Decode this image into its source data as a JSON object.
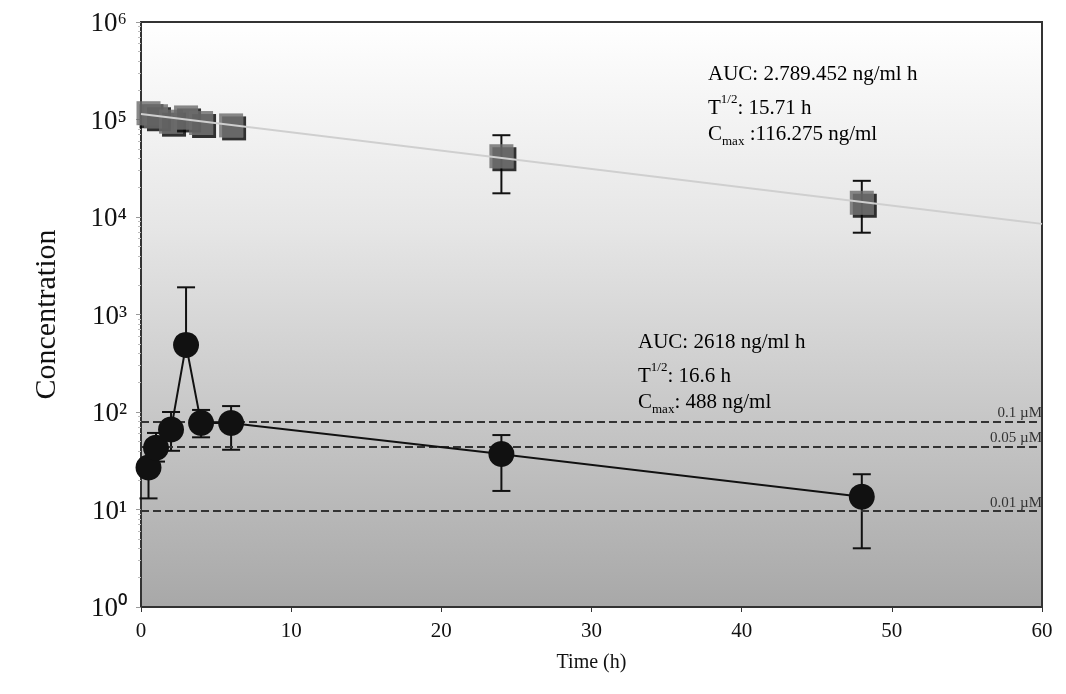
{
  "chart_data": {
    "type": "line",
    "xlabel": "Time (h)",
    "ylabel": "Concentration",
    "xlim": [
      0,
      60
    ],
    "xticks": [
      0,
      10,
      20,
      30,
      40,
      50,
      60
    ],
    "log": "y",
    "ylim": [
      1,
      1000000
    ],
    "yticks": [
      {
        "value": 1,
        "label": "10⁰"
      },
      {
        "value": 10,
        "label": "10¹"
      },
      {
        "value": 100,
        "label": "10²"
      },
      {
        "value": 1000,
        "label": "10³"
      },
      {
        "value": 10000,
        "label": "10⁴"
      },
      {
        "value": 100000,
        "label": "10⁵"
      },
      {
        "value": 1000000,
        "label": "10⁶"
      }
    ],
    "grid": false,
    "series": [
      {
        "type": "scatter",
        "color": "#6b6b6b",
        "marker": "square",
        "x": [
          0.5,
          1,
          2,
          3,
          4,
          6,
          24,
          48
        ],
        "values": [
          116000,
          108000,
          95000,
          105000,
          92000,
          87000,
          42000,
          14000
        ],
        "errors": [
          null,
          null,
          null,
          null,
          null,
          null,
          [
            17500,
            69000
          ],
          [
            6900,
            23500
          ]
        ]
      },
      {
        "type": "line",
        "color": "#cfcfcf",
        "marker": "none",
        "line_style": "solid",
        "x": [
          0,
          60
        ],
        "values": [
          114000,
          8500
        ]
      },
      {
        "type": "line",
        "color": "#111111",
        "marker": "circle",
        "line_style": "solid",
        "x": [
          0.5,
          1,
          2,
          3,
          4,
          6,
          24,
          48
        ],
        "values": [
          27,
          43,
          66,
          488,
          77,
          77,
          37,
          13.5
        ],
        "errors": [
          [
            13,
            27
          ],
          [
            31,
            61
          ],
          [
            40,
            100
          ],
          [
            488,
            1900
          ],
          [
            55,
            105
          ],
          [
            41,
            115
          ],
          [
            15.5,
            58
          ],
          [
            4,
            23
          ]
        ]
      }
    ],
    "ref_lines": [
      {
        "axis": "y",
        "value": 80,
        "label": "0.1 µM",
        "color": "#333333",
        "line_style": "dashed"
      },
      {
        "axis": "y",
        "value": 44,
        "label": "0.05 µM",
        "color": "#333333",
        "line_style": "dashed"
      },
      {
        "axis": "y",
        "value": 9.6,
        "label": "0.01 µM",
        "color": "#333333",
        "line_style": "dashed"
      }
    ],
    "annotations": [
      "AUC: 2.789.452 ng/ml h",
      "T$^{1/2}$: 15.71 h",
      "C$_{max}$ :116.275 ng/ml",
      "AUC: 2618 ng/ml h",
      "T$^{1/2}$: 16.6 h",
      "C$_{max}$: 488 ng/ml"
    ]
  }
}
